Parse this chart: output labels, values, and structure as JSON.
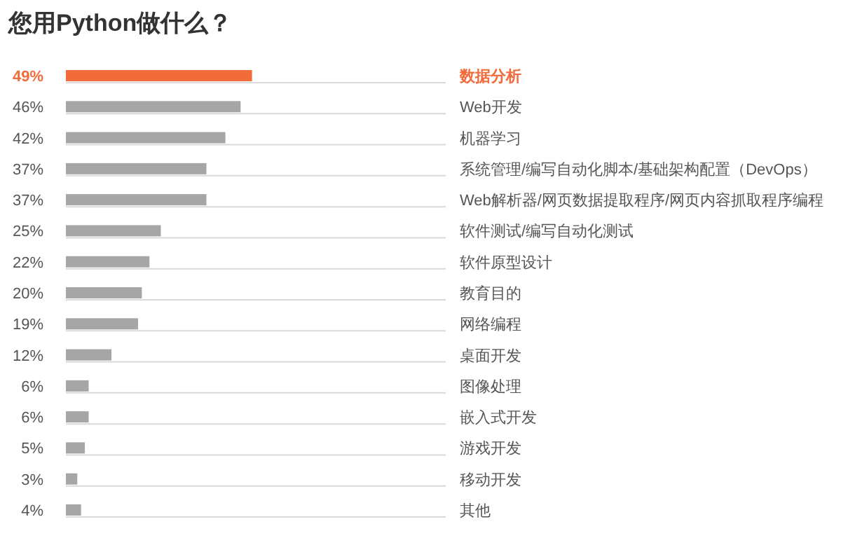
{
  "chart_data": {
    "type": "bar",
    "orientation": "horizontal",
    "title": "您用Python做什么？",
    "categories": [
      "数据分析",
      "Web开发",
      "机器学习",
      "系统管理/编写自动化脚本/基础架构配置（DevOps）",
      "Web解析器/网页数据提取程序/网页内容抓取程序编程",
      "软件测试/编写自动化测试",
      "软件原型设计",
      "教育目的",
      "网络编程",
      "桌面开发",
      "图像处理",
      "嵌入式开发",
      "游戏开发",
      "移动开发",
      "其他"
    ],
    "values": [
      49,
      46,
      42,
      37,
      37,
      25,
      22,
      20,
      19,
      12,
      6,
      6,
      5,
      3,
      4
    ],
    "value_labels": [
      "49%",
      "46%",
      "42%",
      "37%",
      "37%",
      "25%",
      "22%",
      "20%",
      "19%",
      "12%",
      "6%",
      "6%",
      "5%",
      "3%",
      "4%"
    ],
    "colors": [
      "#f26b3a",
      "#a6a6a6",
      "#a6a6a6",
      "#a6a6a6",
      "#a6a6a6",
      "#a6a6a6",
      "#a6a6a6",
      "#a6a6a6",
      "#a6a6a6",
      "#a6a6a6",
      "#a6a6a6",
      "#a6a6a6",
      "#a6a6a6",
      "#a6a6a6",
      "#a6a6a6"
    ],
    "xlim": [
      0,
      100
    ]
  }
}
